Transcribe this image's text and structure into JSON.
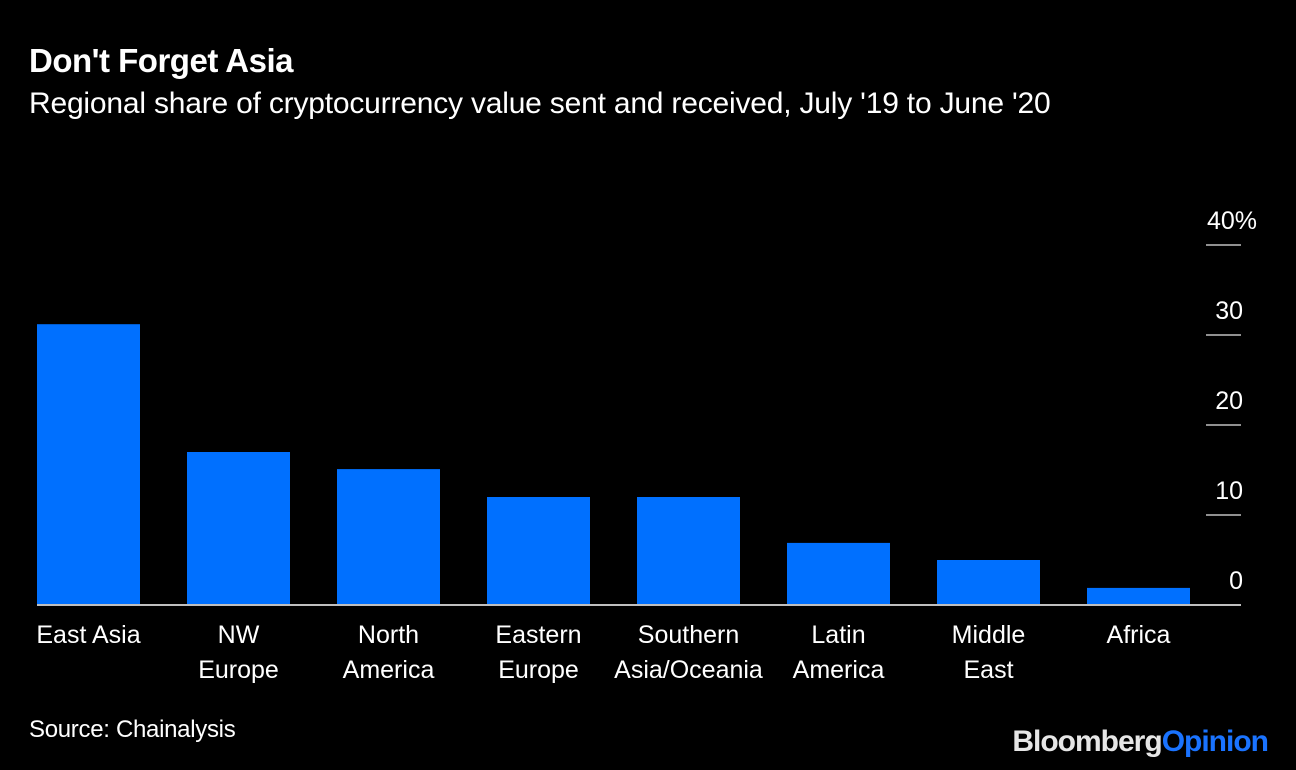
{
  "header": {
    "title": "Don't Forget Asia",
    "subtitle": "Regional share of cryptocurrency value sent and received, July '19 to June '20"
  },
  "footer": {
    "source": "Source: Chainalysis",
    "logo_part1": "Bloomberg",
    "logo_part2": "Opinion"
  },
  "colors": {
    "background": "#000000",
    "bar": "#0070ff",
    "axis": "#bfbfbf",
    "text": "#ffffff",
    "logo_accent": "#1a73ff"
  },
  "chart_data": {
    "type": "bar",
    "title": "Don't Forget Asia",
    "subtitle": "Regional share of cryptocurrency value sent and received, July '19 to June '20",
    "categories": [
      [
        "East Asia"
      ],
      [
        "NW",
        "Europe"
      ],
      [
        "North",
        "America"
      ],
      [
        "Eastern",
        "Europe"
      ],
      [
        "Southern",
        "Asia/Oceania"
      ],
      [
        "Latin",
        "America"
      ],
      [
        "Middle",
        "East"
      ],
      [
        "Africa"
      ]
    ],
    "values": [
      31.2,
      17.0,
      15.1,
      12.0,
      12.0,
      6.9,
      5.0,
      1.9
    ],
    "xlabel": "",
    "ylabel": "",
    "ylim": [
      0,
      40
    ],
    "yticks": [
      0,
      10,
      20,
      30,
      40
    ],
    "ytick_labels": [
      "0",
      "10",
      "20",
      "30",
      "40%"
    ],
    "yaxis_side": "right",
    "grid": false,
    "legend": "none",
    "source": "Source: Chainalysis"
  }
}
